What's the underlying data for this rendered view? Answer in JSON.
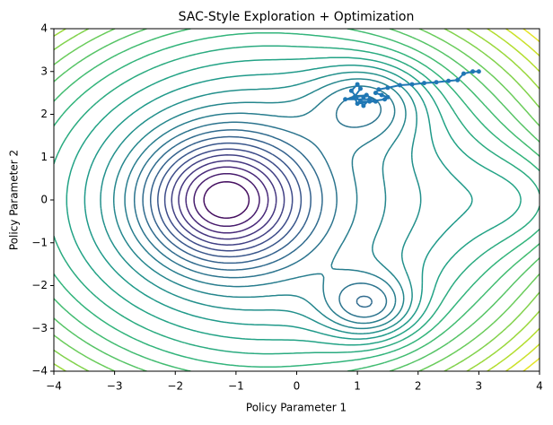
{
  "chart_data": {
    "type": "contour",
    "title": "SAC-Style Exploration + Optimization",
    "x_label": "Policy Parameter 1",
    "y_label": "Policy Parameter 2",
    "xlim": [
      -4,
      4
    ],
    "ylim": [
      -4,
      4
    ],
    "xticks": [
      {
        "value": -4,
        "label": "−4"
      },
      {
        "value": -3,
        "label": "−3"
      },
      {
        "value": -2,
        "label": "−2"
      },
      {
        "value": -1,
        "label": "−1"
      },
      0,
      1,
      2,
      3,
      4
    ],
    "yticks": [
      {
        "value": -4,
        "label": "−4"
      },
      {
        "value": -3,
        "label": "−3"
      },
      {
        "value": -2,
        "label": "−2"
      },
      {
        "value": -1,
        "label": "−1"
      },
      0,
      1,
      2,
      3,
      4
    ],
    "series": [
      {
        "color": "#1f77b4",
        "x": [
          3.0,
          2.9,
          2.75,
          2.65,
          2.5,
          2.3,
          2.1,
          1.9,
          1.7,
          1.5,
          1.35,
          1.3,
          1.4,
          1.5,
          1.45,
          1.2,
          1.0,
          0.95,
          1.05,
          1.0,
          0.9,
          1.1,
          1.2,
          0.8,
          1.15,
          1.3,
          1.05,
          1.1
        ],
        "y": [
          3.0,
          3.0,
          2.95,
          2.8,
          2.78,
          2.75,
          2.73,
          2.7,
          2.68,
          2.62,
          2.58,
          2.5,
          2.45,
          2.4,
          2.35,
          2.3,
          2.25,
          2.4,
          2.6,
          2.7,
          2.55,
          2.2,
          2.35,
          2.35,
          2.45,
          2.3,
          2.3,
          2.4
        ]
      }
    ]
  }
}
